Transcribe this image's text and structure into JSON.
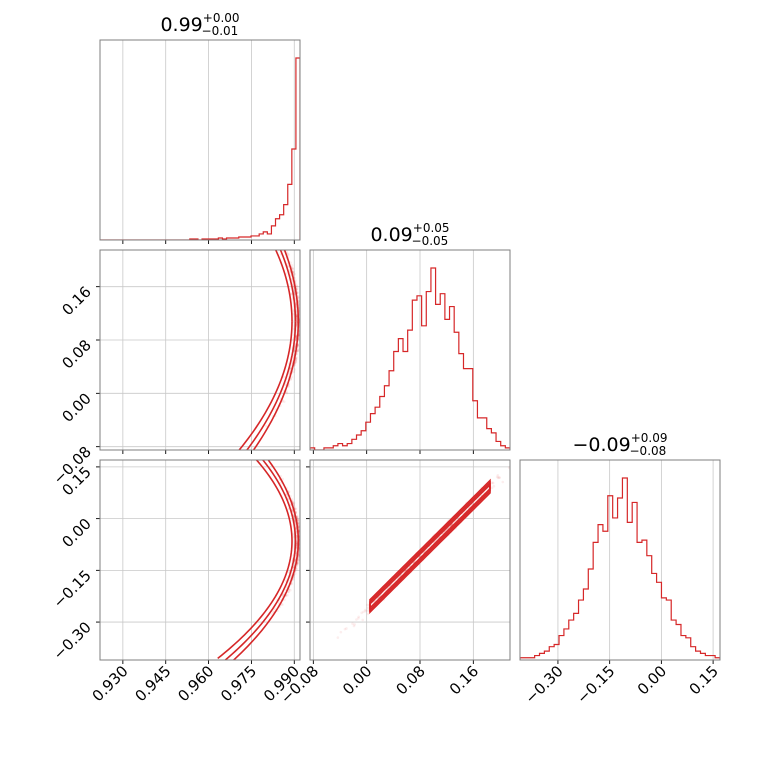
{
  "chart_data": {
    "type": "corner",
    "color": "#d62728",
    "grid": true,
    "titles": [
      {
        "main": "0.99",
        "plus": "+0.00",
        "minus": "−0.01"
      },
      {
        "main": "0.09",
        "plus": "+0.05",
        "minus": "−0.05"
      },
      {
        "main": "−0.09",
        "plus": "+0.09",
        "minus": "−0.08"
      }
    ],
    "params": [
      {
        "range": [
          0.922,
          0.992
        ],
        "ticks": [
          0.93,
          0.945,
          0.96,
          0.975,
          0.99
        ],
        "tick_labels": [
          "0.930",
          "0.945",
          "0.960",
          "0.975",
          "0.990"
        ]
      },
      {
        "range": [
          -0.085,
          0.215
        ],
        "ticks": [
          -0.08,
          0.0,
          0.08,
          0.16
        ],
        "tick_labels": [
          "−0.08",
          "0.00",
          "0.08",
          "0.16"
        ]
      },
      {
        "range": [
          -0.41,
          0.17
        ],
        "ticks": [
          -0.3,
          -0.15,
          0.0,
          0.15
        ],
        "tick_labels": [
          "−0.30",
          "−0.15",
          "0.00",
          "0.15"
        ]
      }
    ],
    "hist1d": [
      {
        "param": 0,
        "bin_edges_range": [
          0.922,
          0.992
        ],
        "counts": [
          0,
          0,
          0,
          0,
          0,
          0,
          0,
          0,
          0,
          0,
          0,
          0,
          0,
          0,
          0,
          0,
          0,
          0,
          0,
          0,
          0,
          0,
          1,
          1,
          0,
          1,
          1,
          1,
          1,
          2,
          1,
          2,
          2,
          2,
          3,
          3,
          3,
          4,
          4,
          6,
          8,
          6,
          14,
          21,
          25,
          35,
          55,
          90,
          180
        ]
      },
      {
        "param": 1,
        "bin_edges_range": [
          -0.085,
          0.215
        ],
        "counts": [
          1,
          0,
          0,
          1,
          1,
          2,
          3,
          2,
          3,
          5,
          7,
          9,
          13,
          17,
          20,
          25,
          30,
          37,
          46,
          52,
          46,
          56,
          70,
          72,
          58,
          74,
          85,
          68,
          73,
          61,
          67,
          55,
          45,
          38,
          38,
          23,
          15,
          15,
          10,
          8,
          4,
          2,
          1
        ]
      },
      {
        "param": 2,
        "bin_edges_range": [
          -0.41,
          0.17
        ],
        "counts": [
          1,
          1,
          1,
          2,
          3,
          4,
          6,
          7,
          11,
          14,
          18,
          21,
          27,
          32,
          41,
          53,
          61,
          58,
          74,
          64,
          73,
          82,
          62,
          71,
          53,
          54,
          47,
          39,
          35,
          28,
          27,
          18,
          16,
          11,
          10,
          6,
          4,
          3,
          2,
          2,
          1
        ]
      }
    ],
    "hist2d": [
      {
        "x_param": 0,
        "y_param": 1,
        "relation": "y = 0.108 ± sqrt((0.992 - x) / 0.42)",
        "scatter_x_range": [
          0.928,
          0.992
        ],
        "contour_x_range": [
          0.968,
          0.992
        ]
      },
      {
        "x_param": 0,
        "y_param": 2,
        "relation": "y = -0.065 ± sqrt((0.992 - x) / 0.19)",
        "scatter_x_range": [
          0.928,
          0.992
        ],
        "contour_x_range": [
          0.966,
          0.992
        ]
      },
      {
        "x_param": 1,
        "y_param": 2,
        "relation": "y = -0.09 + 1.92 * (x - 0.09)",
        "scatter_x_range": [
          -0.05,
          0.205
        ],
        "contour_x_range": [
          0.005,
          0.185
        ]
      }
    ]
  }
}
